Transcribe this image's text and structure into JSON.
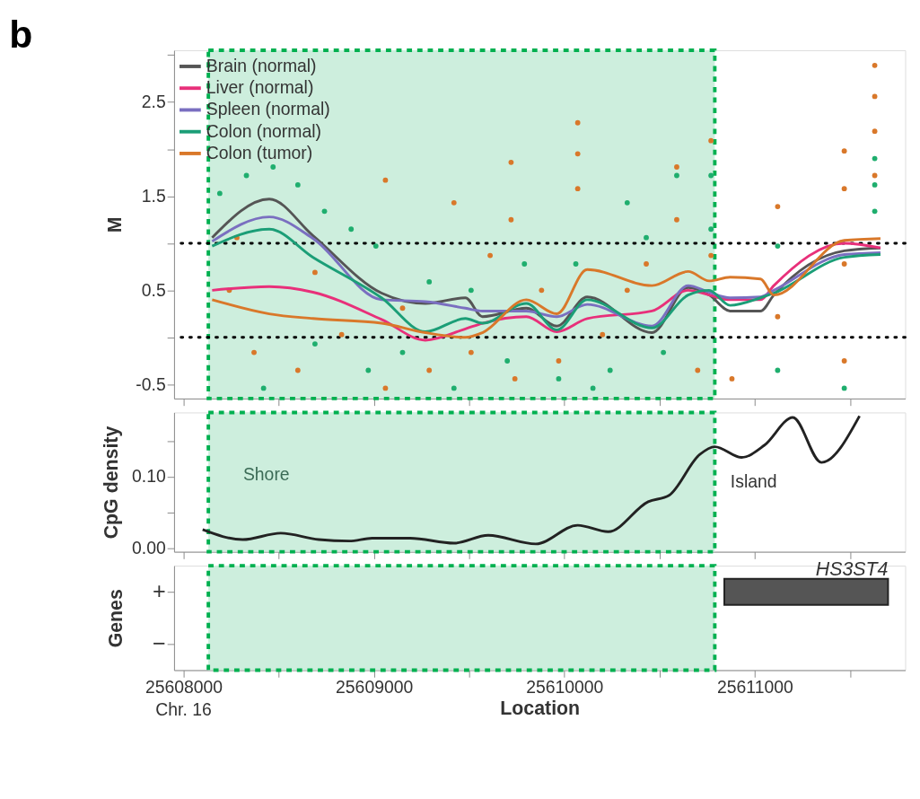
{
  "chart_data": [
    {
      "type": "line",
      "title": "b",
      "ylabel": "M",
      "legend": "top left",
      "tick_labels": "y",
      "xlim": [
        25607950,
        25611790
      ],
      "xticks": [
        25608000,
        {
          "value": 25608500,
          "label": null
        },
        25609000,
        {
          "value": 25609500,
          "label": null
        },
        25610000,
        {
          "value": 25610500,
          "label": null
        },
        25611000,
        {
          "value": 25611500,
          "label": null
        }
      ],
      "ylim": [
        -0.65,
        3.05
      ],
      "yticks": [
        {
          "value": 3,
          "label": null
        },
        2.5,
        {
          "value": 2,
          "label": null
        },
        1.5,
        {
          "value": 1,
          "label": null
        },
        0.5,
        {
          "value": 0,
          "label": null
        },
        -0.5
      ],
      "x": [
        25608150,
        25608450,
        25608680,
        25609040,
        25609270,
        25609480,
        25609570,
        25609800,
        25609960,
        25610120,
        25610460,
        25610650,
        25610760,
        25610870,
        25611030,
        25611100,
        25611470,
        25611660
      ],
      "series": [
        {
          "name": "Brain (normal)",
          "color": "#555555",
          "values": [
            1.06,
            1.47,
            1.08,
            0.47,
            0.36,
            0.42,
            0.22,
            0.31,
            0.12,
            0.43,
            0.05,
            0.53,
            0.45,
            0.28,
            0.28,
            0.45,
            0.92,
            0.95
          ]
        },
        {
          "name": "Liver (normal)",
          "color": "#e8307a",
          "values": [
            0.5,
            0.54,
            0.48,
            0.19,
            -0.03,
            0.09,
            0.15,
            0.22,
            0.06,
            0.2,
            0.28,
            0.5,
            0.45,
            0.4,
            0.4,
            0.55,
            1.0,
            0.95
          ]
        },
        {
          "name": "Spleen (normal)",
          "color": "#7a6fc0",
          "values": [
            1.02,
            1.28,
            1.05,
            0.4,
            0.38,
            0.31,
            0.28,
            0.28,
            0.22,
            0.35,
            0.12,
            0.55,
            0.48,
            0.42,
            0.43,
            0.5,
            0.88,
            0.9
          ]
        },
        {
          "name": "Colon (normal)",
          "color": "#1b9e77",
          "values": [
            0.97,
            1.15,
            0.85,
            0.42,
            0.06,
            0.2,
            0.15,
            0.36,
            0.08,
            0.4,
            0.1,
            0.45,
            0.5,
            0.34,
            0.42,
            0.47,
            0.85,
            0.88
          ]
        },
        {
          "name": "Colon (tumor)",
          "color": "#d9782a",
          "values": [
            0.4,
            0.25,
            0.2,
            0.15,
            0.05,
            0.0,
            0.05,
            0.4,
            0.25,
            0.72,
            0.55,
            0.7,
            0.6,
            0.64,
            0.62,
            0.45,
            1.03,
            1.05
          ]
        },
        {
          "type": "scatter",
          "color": "#d9782a",
          "x": [
            25611630,
            25611630,
            25611630,
            25611630,
            25611470,
            25611470,
            25611470,
            25611470,
            25610070,
            25610070,
            25610070,
            25610590,
            25610590,
            25610770,
            25610770,
            25611120,
            25611120,
            25610880,
            25609720,
            25609720,
            25609060,
            25609420,
            25608240,
            25608370,
            25608600,
            25608830,
            25609060,
            25609290,
            25609510,
            25609740,
            25609970,
            25610200,
            25610430,
            25608280,
            25608690,
            25609150,
            25609610,
            25609880,
            25610330,
            25610700
          ],
          "values": [
            2.89,
            2.56,
            2.19,
            1.72,
            1.98,
            1.58,
            0.78,
            -0.25,
            2.28,
            1.95,
            1.58,
            1.81,
            1.25,
            2.09,
            0.87,
            1.39,
            0.22,
            -0.44,
            1.86,
            1.25,
            1.67,
            1.43,
            0.5,
            -0.16,
            -0.35,
            0.03,
            -0.54,
            -0.35,
            -0.16,
            -0.44,
            -0.25,
            0.03,
            0.78,
            1.06,
            0.69,
            0.31,
            0.87,
            0.5,
            0.5,
            -0.35
          ]
        },
        {
          "type": "scatter",
          "color": "#1fae6e",
          "x": [
            25611630,
            25611630,
            25611630,
            25610770,
            25610770,
            25610590,
            25611120,
            25611470,
            25611120,
            25608330,
            25608470,
            25608600,
            25608740,
            25608880,
            25608190,
            25609010,
            25609290,
            25609510,
            25609790,
            25610060,
            25610330,
            25610430,
            25609150,
            25609420,
            25609700,
            25609970,
            25610240,
            25610520,
            25608420,
            25608690,
            25608970,
            25610150
          ],
          "values": [
            1.62,
            1.9,
            1.34,
            1.72,
            1.15,
            1.72,
            0.97,
            -0.54,
            -0.35,
            1.72,
            1.81,
            1.62,
            1.34,
            1.15,
            1.53,
            0.97,
            0.59,
            0.5,
            0.78,
            0.78,
            1.43,
            1.06,
            -0.16,
            -0.54,
            -0.25,
            -0.44,
            -0.35,
            -0.16,
            -0.54,
            -0.07,
            -0.35,
            -0.54
          ]
        }
      ],
      "ref_lines": [
        {
          "axis": "y",
          "value": 1,
          "line_style": "dotted",
          "color": "#000000"
        },
        {
          "axis": "y",
          "value": 0,
          "line_style": "dotted",
          "color": "#000000"
        }
      ],
      "bands": [
        {
          "axis": "x",
          "from": 25608130,
          "to": 25610790,
          "color": "#cdeedd"
        }
      ]
    },
    {
      "type": "line",
      "ylabel": "CpG density",
      "tick_labels": "y",
      "xlim": [
        25607950,
        25611790
      ],
      "xticks": [
        25608000,
        {
          "value": 25608500,
          "label": null
        },
        25609000,
        {
          "value": 25609500,
          "label": null
        },
        25610000,
        {
          "value": 25610500,
          "label": null
        },
        25611000,
        {
          "value": 25611500,
          "label": null
        }
      ],
      "ylim": [
        -0.005,
        0.19
      ],
      "yticks": [
        {
          "value": 0.15,
          "label": null
        },
        {
          "value": 0.1,
          "label": "0.10"
        },
        {
          "value": 0.05,
          "label": null
        },
        {
          "value": 0,
          "label": "0.00"
        }
      ],
      "x": [
        25608100,
        25608310,
        25608510,
        25608710,
        25608870,
        25608990,
        25609190,
        25609420,
        25609600,
        25609850,
        25610070,
        25610230,
        25610440,
        25610550,
        25610710,
        25610790,
        25610930,
        25611050,
        25611200,
        25611350,
        25611550
      ],
      "series": [
        {
          "color": "#222222",
          "values": [
            0.026,
            0.012,
            0.021,
            0.012,
            0.01,
            0.014,
            0.014,
            0.007,
            0.018,
            0.006,
            0.032,
            0.023,
            0.065,
            0.074,
            0.131,
            0.142,
            0.127,
            0.144,
            0.183,
            0.12,
            0.185
          ]
        }
      ],
      "annotations": [
        "Island"
      ],
      "bands": [
        {
          "axis": "x",
          "from": 25608130,
          "to": 25610790,
          "color": "#cdeedd",
          "label": "Shore"
        }
      ]
    },
    {
      "type": "bar",
      "orientation": "horizontal",
      "ylabel": "Genes",
      "xlabel": "Location",
      "xlim": [
        25607950,
        25611790
      ],
      "xticks": [
        25608000,
        {
          "value": 25608500,
          "label": null
        },
        25609000,
        {
          "value": 25609500,
          "label": null
        },
        25610000,
        {
          "value": 25610500,
          "label": null
        },
        25611000,
        {
          "value": 25611500,
          "label": null
        }
      ],
      "categories": [
        "+",
        "−"
      ],
      "values": [
        860,
        null
      ],
      "base": [
        25610840,
        null
      ],
      "color": "#555555",
      "annotations": [
        "HS3ST4",
        "Chr. 16"
      ],
      "bands": [
        {
          "axis": "x",
          "from": 25608130,
          "to": 25610790,
          "color": "#cdeedd"
        }
      ]
    }
  ]
}
